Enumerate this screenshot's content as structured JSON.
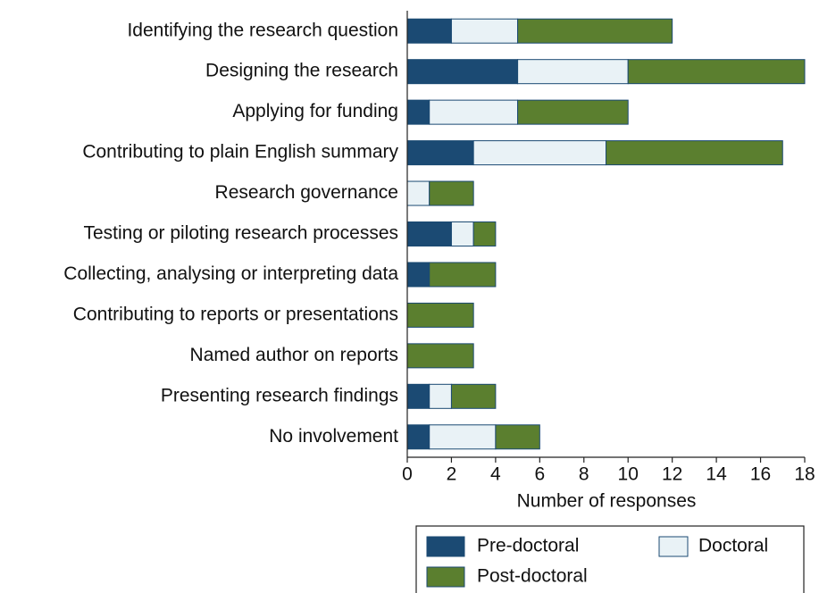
{
  "chart_data": {
    "type": "stacked-barh",
    "categories": [
      "Identifying the research question",
      "Designing the research",
      "Applying for funding",
      "Contributing to plain English summary",
      "Research governance",
      "Testing or piloting research processes",
      "Collecting, analysing or interpreting data",
      "Contributing to reports or presentations",
      "Named author on reports",
      "Presenting research findings",
      "No involvement"
    ],
    "series": [
      {
        "name": "Pre-doctoral",
        "color": "#1b4a73",
        "values": [
          2,
          5,
          1,
          3,
          0,
          2,
          1,
          0,
          0,
          1,
          1
        ]
      },
      {
        "name": "Doctoral",
        "color": "#e9f2f6",
        "values": [
          3,
          5,
          4,
          6,
          1,
          1,
          0,
          0,
          0,
          1,
          3
        ]
      },
      {
        "name": "Post-doctoral",
        "color": "#5b7f2f",
        "values": [
          7,
          8,
          5,
          8,
          2,
          1,
          3,
          3,
          3,
          2,
          2
        ]
      }
    ],
    "xlabel": "Number of responses",
    "xlim": [
      0,
      18
    ],
    "xticks": [
      0,
      2,
      4,
      6,
      8,
      10,
      12,
      14,
      16,
      18
    ],
    "legend": "bottom"
  }
}
